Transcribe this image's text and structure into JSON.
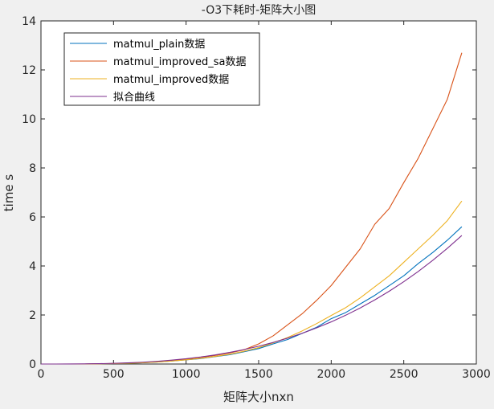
{
  "chart_data": {
    "type": "line",
    "title": "-O3下耗时-矩阵大小图",
    "xlabel": "矩阵大小nxn",
    "ylabel": "time s",
    "xlim": [
      0,
      3000
    ],
    "ylim": [
      0,
      14
    ],
    "xticks": [
      0,
      500,
      1000,
      1500,
      2000,
      2500,
      3000
    ],
    "yticks": [
      0,
      2,
      4,
      6,
      8,
      10,
      12,
      14
    ],
    "grid": false,
    "legend_position": "top-left",
    "series": [
      {
        "name": "matmul_plain数据",
        "color": "#0072bd",
        "x": [
          0,
          100,
          200,
          300,
          400,
          500,
          600,
          700,
          800,
          900,
          1000,
          1100,
          1200,
          1300,
          1400,
          1500,
          1600,
          1700,
          1800,
          1900,
          2000,
          2100,
          2200,
          2300,
          2400,
          2500,
          2600,
          2700,
          2800,
          2900
        ],
        "y": [
          0,
          0,
          0,
          0,
          0.01,
          0.02,
          0.03,
          0.05,
          0.08,
          0.12,
          0.17,
          0.22,
          0.3,
          0.38,
          0.5,
          0.63,
          0.82,
          1.0,
          1.25,
          1.5,
          1.85,
          2.1,
          2.45,
          2.8,
          3.2,
          3.6,
          4.1,
          4.55,
          5.05,
          5.6
        ]
      },
      {
        "name": "matmul_improved_sa数据",
        "color": "#d95319",
        "x": [
          0,
          100,
          200,
          300,
          400,
          500,
          600,
          700,
          800,
          900,
          1000,
          1100,
          1200,
          1300,
          1400,
          1500,
          1600,
          1700,
          1800,
          1900,
          2000,
          2100,
          2200,
          2300,
          2400,
          2500,
          2600,
          2700,
          2800,
          2900
        ],
        "y": [
          0,
          0,
          0,
          0,
          0.01,
          0.02,
          0.04,
          0.06,
          0.1,
          0.14,
          0.2,
          0.27,
          0.35,
          0.45,
          0.58,
          0.82,
          1.15,
          1.6,
          2.05,
          2.6,
          3.2,
          3.95,
          4.7,
          5.7,
          6.35,
          7.4,
          8.4,
          9.6,
          10.8,
          12.7
        ]
      },
      {
        "name": "matmul_improved数据",
        "color": "#edb120",
        "x": [
          0,
          100,
          200,
          300,
          400,
          500,
          600,
          700,
          800,
          900,
          1000,
          1100,
          1200,
          1300,
          1400,
          1500,
          1600,
          1700,
          1800,
          1900,
          2000,
          2100,
          2200,
          2300,
          2400,
          2500,
          2600,
          2700,
          2800,
          2900
        ],
        "y": [
          0,
          0,
          0,
          0,
          0.01,
          0.02,
          0.03,
          0.05,
          0.08,
          0.12,
          0.17,
          0.23,
          0.31,
          0.4,
          0.52,
          0.67,
          0.86,
          1.08,
          1.35,
          1.65,
          1.98,
          2.3,
          2.7,
          3.15,
          3.6,
          4.15,
          4.7,
          5.25,
          5.85,
          6.65
        ]
      },
      {
        "name": "拟合曲线",
        "color": "#7e2f8e",
        "x": [
          0,
          100,
          200,
          300,
          400,
          500,
          600,
          700,
          800,
          900,
          1000,
          1100,
          1200,
          1300,
          1400,
          1500,
          1600,
          1700,
          1800,
          1900,
          2000,
          2100,
          2200,
          2300,
          2400,
          2500,
          2600,
          2700,
          2800,
          2900
        ],
        "y": [
          0,
          0,
          0.002,
          0.006,
          0.014,
          0.027,
          0.047,
          0.074,
          0.11,
          0.157,
          0.215,
          0.287,
          0.372,
          0.473,
          0.59,
          0.725,
          0.88,
          1.056,
          1.253,
          1.474,
          1.719,
          1.99,
          2.288,
          2.615,
          2.971,
          3.359,
          3.778,
          4.232,
          4.72,
          5.245
        ]
      }
    ]
  }
}
